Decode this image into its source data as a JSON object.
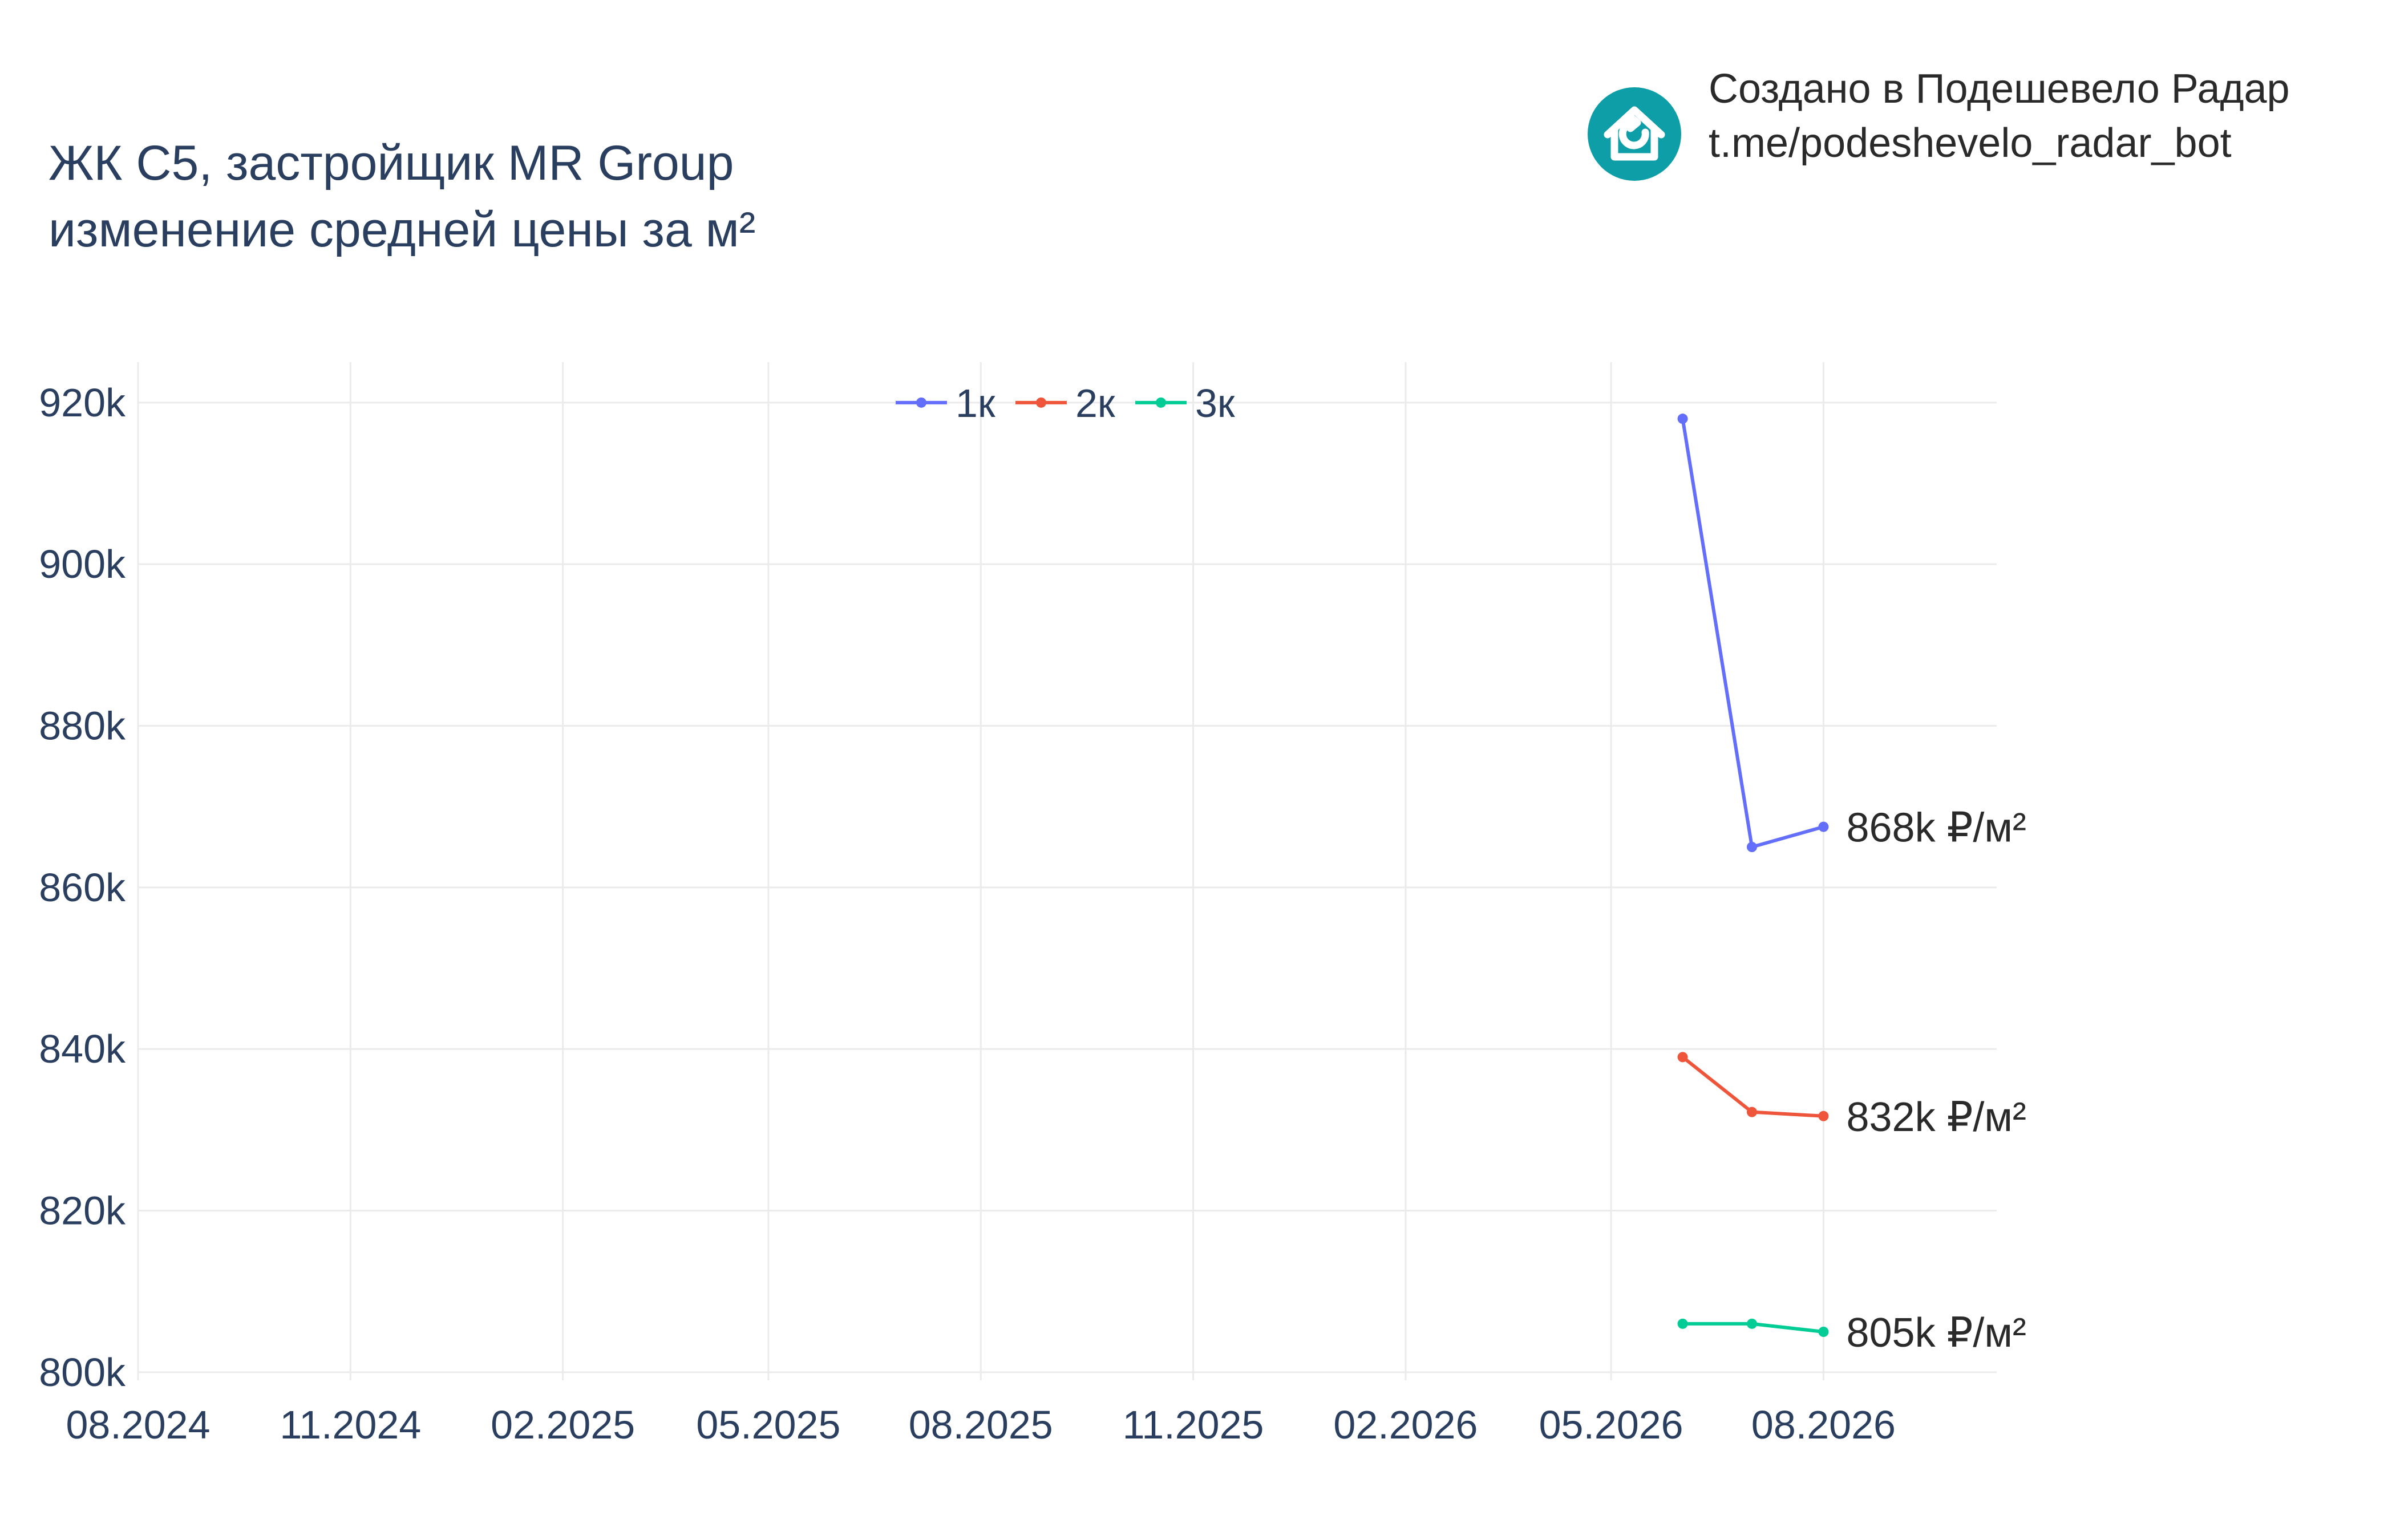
{
  "header": {
    "title_line1": "ЖК С5, застройщик MR Group",
    "title_line2": "изменение средней цены за м²"
  },
  "credit": {
    "line1": "Создано в Подешевело Радар",
    "line2": "t.me/podeshevelo_radar_bot",
    "logo_icon": "house-refresh-icon",
    "logo_color": "#0e9ea8"
  },
  "chart_data": {
    "type": "line",
    "title": "ЖК С5, застройщик MR Group изменение средней цены за м²",
    "xlabel": "",
    "ylabel": "",
    "x_ticks": [
      "08.2024",
      "11.2024",
      "02.2025",
      "05.2025",
      "08.2025",
      "11.2025",
      "02.2026",
      "05.2026",
      "08.2026"
    ],
    "y_ticks": [
      "800k",
      "820k",
      "840k",
      "860k",
      "880k",
      "900k",
      "920k"
    ],
    "xlim": [
      "2024-08-01",
      "2026-10-15"
    ],
    "ylim": [
      799000,
      925000
    ],
    "grid": true,
    "legend_position": "top-center",
    "x": [
      "2026-06-01",
      "2026-07-01",
      "2026-08-01"
    ],
    "series": [
      {
        "name": "1к",
        "color": "#636efa",
        "values": [
          918000,
          865000,
          867500
        ],
        "end_label": "868k ₽/м²"
      },
      {
        "name": "2к",
        "color": "#ef553b",
        "values": [
          839000,
          832200,
          831700
        ],
        "end_label": "832k ₽/м²"
      },
      {
        "name": "3к",
        "color": "#00cc96",
        "values": [
          806000,
          806000,
          805000
        ],
        "end_label": "805k ₽/м²"
      }
    ]
  }
}
